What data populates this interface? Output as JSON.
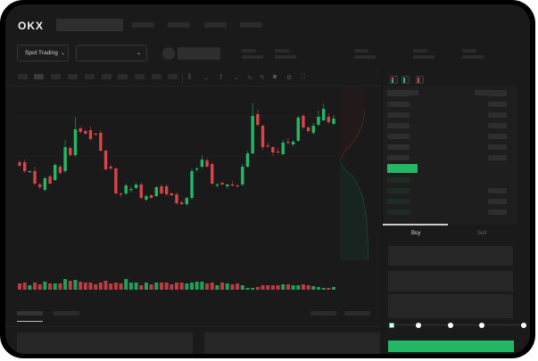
{
  "header": {
    "logo": "OKX",
    "nav_items": 4
  },
  "toolbar": {
    "market_selector": "Spot Trading",
    "market_selector_icon": "chevron-down-icon",
    "pair_selector_icon": "chevron-down-icon"
  },
  "chart_tools": [
    "candles-icon",
    "chevron-down-icon",
    "indicators-icon",
    "chevron-down-icon",
    "line-icon",
    "draw-icon",
    "camera-icon",
    "settings-icon",
    "fullscreen-icon"
  ],
  "order_book": {
    "view_icons": [
      "order-book-both-icon",
      "order-book-bids-icon",
      "order-book-asks-icon"
    ]
  },
  "trade_panel": {
    "tabs": [
      "Buy",
      "Sell"
    ],
    "active_tab": "Buy",
    "leverage_slider": {
      "value": 0,
      "stops": 5
    }
  },
  "colors": {
    "up": "#22b865",
    "down": "#d9434a",
    "background": "#1a1a1a"
  },
  "chart_data": {
    "type": "candlestick",
    "title": "",
    "candles": [
      [
        118,
        120,
        113,
        114
      ],
      [
        118,
        121,
        106,
        108
      ],
      [
        107,
        109,
        106,
        108
      ],
      [
        108,
        113,
        92,
        94
      ],
      [
        93,
        95,
        88,
        90
      ],
      [
        87,
        102,
        85,
        100
      ],
      [
        102,
        104,
        93,
        94
      ],
      [
        98,
        117,
        97,
        115
      ],
      [
        113,
        115,
        104,
        106
      ],
      [
        108,
        143,
        106,
        135
      ],
      [
        134,
        136,
        124,
        126
      ],
      [
        126,
        168,
        124,
        155
      ],
      [
        156,
        158,
        150,
        152
      ],
      [
        153,
        155,
        149,
        150
      ],
      [
        154,
        158,
        142,
        144
      ],
      [
        150,
        151,
        148,
        149
      ],
      [
        151,
        154,
        130,
        131
      ],
      [
        131,
        132,
        109,
        110
      ],
      [
        113,
        115,
        109,
        111
      ],
      [
        111,
        112,
        82,
        83
      ],
      [
        83,
        84,
        79,
        82
      ],
      [
        83,
        94,
        81,
        92
      ],
      [
        87,
        91,
        84,
        88
      ],
      [
        89,
        95,
        88,
        93
      ],
      [
        93,
        96,
        76,
        78
      ],
      [
        76,
        82,
        74,
        80
      ],
      [
        81,
        82,
        77,
        78
      ],
      [
        80,
        91,
        79,
        90
      ],
      [
        91,
        93,
        82,
        83
      ],
      [
        91,
        93,
        80,
        82
      ],
      [
        83,
        84,
        80,
        81
      ],
      [
        82,
        84,
        70,
        72
      ],
      [
        73,
        75,
        70,
        71
      ],
      [
        71,
        79,
        69,
        78
      ],
      [
        78,
        111,
        76,
        108
      ],
      [
        110,
        113,
        107,
        111
      ],
      [
        113,
        126,
        111,
        121
      ],
      [
        120,
        123,
        112,
        113
      ],
      [
        116,
        118,
        93,
        94
      ],
      [
        92,
        95,
        90,
        93
      ],
      [
        95,
        96,
        92,
        93
      ],
      [
        91,
        94,
        88,
        93
      ],
      [
        93,
        97,
        91,
        92
      ],
      [
        92,
        93,
        90,
        91
      ],
      [
        93,
        116,
        91,
        113
      ],
      [
        113,
        131,
        112,
        128
      ],
      [
        128,
        185,
        127,
        170
      ],
      [
        172,
        177,
        158,
        160
      ],
      [
        159,
        160,
        132,
        135
      ],
      [
        137,
        140,
        134,
        136
      ],
      [
        135,
        136,
        125,
        129
      ],
      [
        130,
        134,
        128,
        129
      ],
      [
        127,
        143,
        126,
        140
      ],
      [
        141,
        145,
        138,
        140
      ],
      [
        138,
        143,
        136,
        141
      ],
      [
        142,
        170,
        141,
        168
      ],
      [
        170,
        172,
        155,
        157
      ],
      [
        157,
        158,
        151,
        153
      ],
      [
        151,
        162,
        149,
        159
      ],
      [
        160,
        176,
        158,
        169
      ],
      [
        165,
        184,
        164,
        178
      ],
      [
        169,
        173,
        161,
        163
      ],
      [
        161,
        171,
        160,
        167
      ]
    ],
    "volume": [
      7,
      8,
      5,
      8,
      6,
      9,
      7,
      7,
      7,
      12,
      10,
      11,
      9,
      8,
      8,
      6,
      8,
      10,
      7,
      8,
      7,
      12,
      8,
      8,
      5,
      8,
      6,
      8,
      8,
      8,
      6,
      8,
      8,
      7,
      8,
      9,
      9,
      7,
      8,
      5,
      8,
      7,
      6,
      7,
      5,
      2,
      2,
      3,
      5,
      5,
      5,
      5,
      6,
      6,
      5,
      5,
      6,
      5,
      4,
      3,
      2,
      2,
      3
    ]
  }
}
